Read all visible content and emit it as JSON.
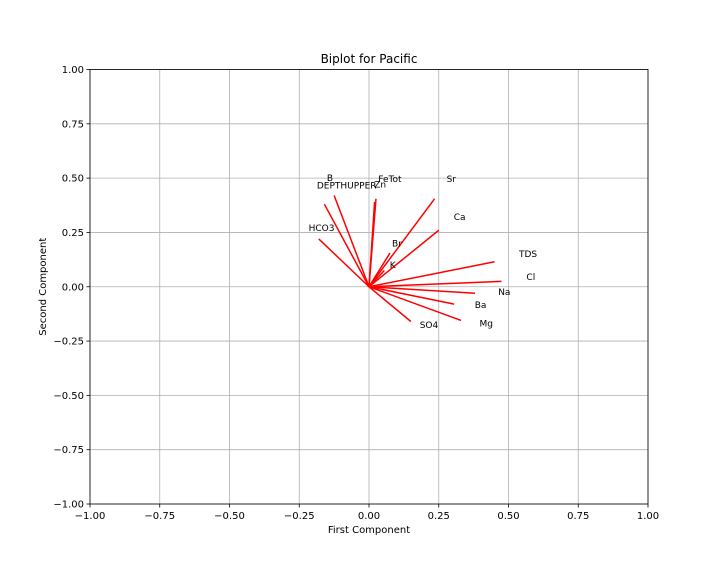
{
  "chart_data": {
    "type": "biplot",
    "title": "Biplot for Pacific",
    "xlabel": "First Component",
    "ylabel": "Second Component",
    "xlim": [
      -1.0,
      1.0
    ],
    "ylim": [
      -1.0,
      1.0
    ],
    "xticks": [
      -1.0,
      -0.75,
      -0.5,
      -0.25,
      0.0,
      0.25,
      0.5,
      0.75,
      1.0
    ],
    "yticks": [
      -1.0,
      -0.75,
      -0.5,
      -0.25,
      0.0,
      0.25,
      0.5,
      0.75,
      1.0
    ],
    "xtick_labels": [
      "−1.00",
      "−0.75",
      "−0.50",
      "−0.25",
      "0.00",
      "0.25",
      "0.50",
      "0.75",
      "1.00"
    ],
    "ytick_labels": [
      "−1.00",
      "−0.75",
      "−0.50",
      "−0.25",
      "0.00",
      "0.25",
      "0.50",
      "0.75",
      "1.00"
    ],
    "grid": true,
    "arrow_color": "#ff0000",
    "vectors": [
      {
        "name": "B",
        "x": -0.125,
        "y": 0.42,
        "label_x": -0.14,
        "label_y": 0.5
      },
      {
        "name": "DEPTHUPPER",
        "x": -0.16,
        "y": 0.38,
        "label_x": -0.08,
        "label_y": 0.465
      },
      {
        "name": "HCO3",
        "x": -0.18,
        "y": 0.22,
        "label_x": -0.17,
        "label_y": 0.27
      },
      {
        "name": "FeTot",
        "x": 0.025,
        "y": 0.405,
        "label_x": 0.075,
        "label_y": 0.495
      },
      {
        "name": "Zn",
        "x": 0.02,
        "y": 0.39,
        "label_x": 0.04,
        "label_y": 0.47
      },
      {
        "name": "Sr",
        "x": 0.235,
        "y": 0.405,
        "label_x": 0.295,
        "label_y": 0.495
      },
      {
        "name": "Ca",
        "x": 0.25,
        "y": 0.26,
        "label_x": 0.325,
        "label_y": 0.32
      },
      {
        "name": "Br",
        "x": 0.075,
        "y": 0.155,
        "label_x": 0.1,
        "label_y": 0.2
      },
      {
        "name": "K",
        "x": 0.055,
        "y": 0.075,
        "label_x": 0.085,
        "label_y": 0.1
      },
      {
        "name": "TDS",
        "x": 0.45,
        "y": 0.115,
        "label_x": 0.57,
        "label_y": 0.15
      },
      {
        "name": "Cl",
        "x": 0.475,
        "y": 0.025,
        "label_x": 0.58,
        "label_y": 0.045
      },
      {
        "name": "Na",
        "x": 0.38,
        "y": -0.03,
        "label_x": 0.485,
        "label_y": -0.025
      },
      {
        "name": "Ba",
        "x": 0.305,
        "y": -0.08,
        "label_x": 0.4,
        "label_y": -0.085
      },
      {
        "name": "Mg",
        "x": 0.33,
        "y": -0.155,
        "label_x": 0.42,
        "label_y": -0.17
      },
      {
        "name": "SO4",
        "x": 0.15,
        "y": -0.16,
        "label_x": 0.215,
        "label_y": -0.175
      }
    ]
  }
}
